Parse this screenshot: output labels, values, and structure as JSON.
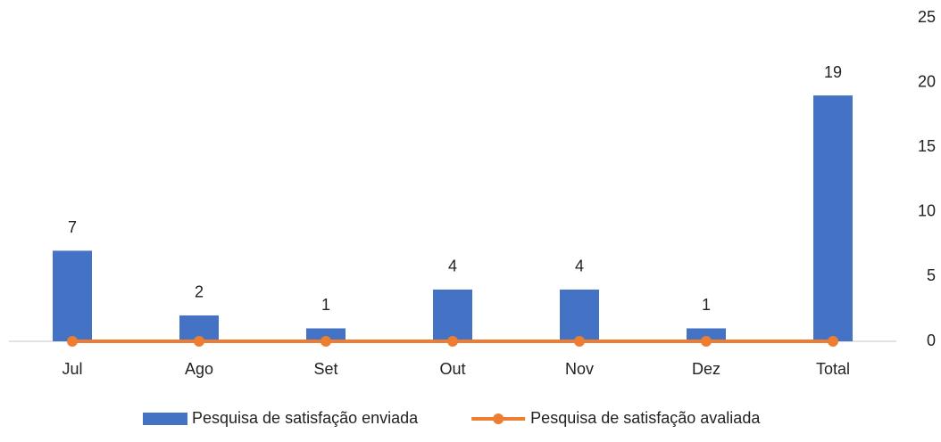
{
  "chart_data": {
    "type": "bar",
    "categories": [
      "Jul",
      "Ago",
      "Set",
      "Out",
      "Nov",
      "Dez",
      "Total"
    ],
    "series": [
      {
        "name": "Pesquisa de satisfação enviada",
        "type": "bar",
        "color": "#4472c4",
        "values": [
          7,
          2,
          1,
          4,
          4,
          1,
          19
        ]
      },
      {
        "name": "Pesquisa de satisfação avaliada",
        "type": "line",
        "color": "#ed7d31",
        "values": [
          0,
          0,
          0,
          0,
          0,
          0,
          0
        ]
      }
    ],
    "ylim": [
      0,
      25
    ],
    "yticks": [
      0,
      5,
      10,
      15,
      20,
      25
    ],
    "yaxis_side": "right",
    "grid": false,
    "legend": "bottom"
  }
}
